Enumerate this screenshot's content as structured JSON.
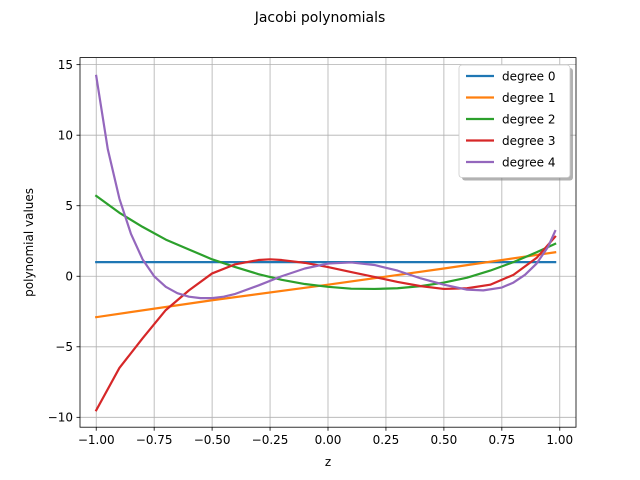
{
  "chart_data": {
    "type": "line",
    "title": "Jacobi polynomials",
    "xlabel": "z",
    "ylabel": "polynomial values",
    "xlim": [
      -1.07,
      1.07
    ],
    "ylim": [
      -10.7,
      15.5
    ],
    "xticks": [
      -1.0,
      -0.75,
      -0.5,
      -0.25,
      0.0,
      0.25,
      0.5,
      0.75,
      1.0
    ],
    "xtick_labels": [
      "−1.00",
      "−0.75",
      "−0.50",
      "−0.25",
      "0.00",
      "0.25",
      "0.50",
      "0.75",
      "1.00"
    ],
    "yticks": [
      -10,
      -5,
      0,
      5,
      10,
      15
    ],
    "ytick_labels": [
      "−10",
      "−5",
      "0",
      "5",
      "10",
      "15"
    ],
    "grid": true,
    "legend_position": "top-right",
    "series": [
      {
        "name": "degree 0",
        "color": "#1f77b4",
        "x": [
          -1.0,
          -0.8,
          -0.6,
          -0.4,
          -0.2,
          0.0,
          0.2,
          0.4,
          0.6,
          0.8,
          0.98
        ],
        "y": [
          1.0,
          1.0,
          1.0,
          1.0,
          1.0,
          1.0,
          1.0,
          1.0,
          1.0,
          1.0,
          1.0
        ]
      },
      {
        "name": "degree 1",
        "color": "#ff7f0e",
        "x": [
          -1.0,
          -0.5,
          0.0,
          0.5,
          0.98
        ],
        "y": [
          -2.9,
          -1.7,
          -0.6,
          0.55,
          1.7
        ]
      },
      {
        "name": "degree 2",
        "color": "#2ca02c",
        "x": [
          -1.0,
          -0.9,
          -0.8,
          -0.7,
          -0.6,
          -0.5,
          -0.4,
          -0.3,
          -0.2,
          -0.1,
          0.0,
          0.1,
          0.2,
          0.3,
          0.4,
          0.5,
          0.6,
          0.7,
          0.8,
          0.9,
          0.98
        ],
        "y": [
          5.7,
          4.5,
          3.5,
          2.6,
          1.9,
          1.2,
          0.65,
          0.15,
          -0.25,
          -0.55,
          -0.75,
          -0.88,
          -0.9,
          -0.85,
          -0.7,
          -0.45,
          -0.1,
          0.4,
          1.0,
          1.7,
          2.3
        ]
      },
      {
        "name": "degree 3",
        "color": "#d62728",
        "x": [
          -1.0,
          -0.9,
          -0.8,
          -0.7,
          -0.6,
          -0.5,
          -0.4,
          -0.3,
          -0.25,
          -0.2,
          -0.1,
          0.0,
          0.1,
          0.2,
          0.3,
          0.4,
          0.5,
          0.6,
          0.7,
          0.8,
          0.9,
          0.98
        ],
        "y": [
          -9.5,
          -6.5,
          -4.4,
          -2.4,
          -1.0,
          0.2,
          0.85,
          1.15,
          1.2,
          1.15,
          0.95,
          0.65,
          0.3,
          -0.05,
          -0.4,
          -0.7,
          -0.9,
          -0.85,
          -0.6,
          0.1,
          1.3,
          2.8
        ]
      },
      {
        "name": "degree 4",
        "color": "#9467bd",
        "x": [
          -1.0,
          -0.95,
          -0.9,
          -0.85,
          -0.8,
          -0.75,
          -0.7,
          -0.65,
          -0.6,
          -0.55,
          -0.5,
          -0.45,
          -0.4,
          -0.3,
          -0.2,
          -0.1,
          0.0,
          0.1,
          0.2,
          0.3,
          0.4,
          0.5,
          0.6,
          0.67,
          0.75,
          0.8,
          0.85,
          0.9,
          0.95,
          0.98
        ],
        "y": [
          14.2,
          9.0,
          5.5,
          3.0,
          1.2,
          0.0,
          -0.75,
          -1.2,
          -1.45,
          -1.55,
          -1.55,
          -1.45,
          -1.25,
          -0.65,
          0.0,
          0.55,
          0.9,
          0.98,
          0.8,
          0.4,
          -0.15,
          -0.6,
          -0.95,
          -1.0,
          -0.8,
          -0.45,
          0.1,
          0.9,
          2.1,
          3.2
        ]
      }
    ]
  }
}
